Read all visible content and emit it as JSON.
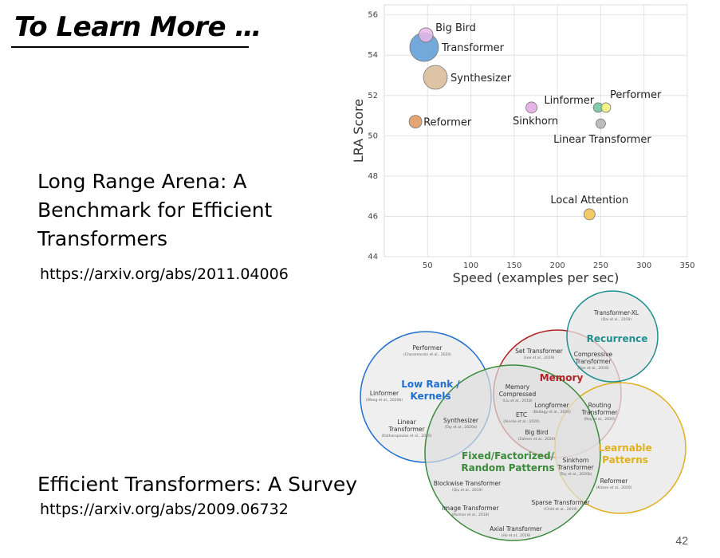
{
  "slide": {
    "title": "To Learn More …",
    "page_number": "42"
  },
  "references": [
    {
      "title_lines": [
        "Long Range Arena: A",
        "Benchmark for Efficient",
        "Transformers"
      ],
      "url": "https://arxiv.org/abs/2011.04006"
    },
    {
      "title_lines": [
        "Efficient Transformers: A Survey"
      ],
      "url": "https://arxiv.org/abs/2009.06732"
    }
  ],
  "chart_data": {
    "type": "scatter",
    "xlabel": "Speed (examples per sec)",
    "ylabel": "LRA Score",
    "xlim": [
      0,
      350
    ],
    "ylim": [
      44,
      56.5
    ],
    "xticks": [
      50,
      100,
      150,
      200,
      250,
      300,
      350
    ],
    "yticks": [
      44,
      46,
      48,
      50,
      52,
      54,
      56
    ],
    "grid": true,
    "points": [
      {
        "label": "Big Bird",
        "x": 48,
        "y": 55.0,
        "size": 9,
        "color": "#e9b8e8"
      },
      {
        "label": "Transformer",
        "x": 46,
        "y": 54.4,
        "size": 18,
        "color": "#5b9bd5"
      },
      {
        "label": "Synthesizer",
        "x": 59,
        "y": 52.9,
        "size": 15,
        "color": "#d9b895"
      },
      {
        "label": "Reformer",
        "x": 36,
        "y": 50.7,
        "size": 8,
        "color": "#e0955a"
      },
      {
        "label": "Linformer",
        "x": 247,
        "y": 51.4,
        "size": 6,
        "color": "#6cc49a"
      },
      {
        "label": "Performer",
        "x": 256,
        "y": 51.4,
        "size": 6,
        "color": "#f0f07a"
      },
      {
        "label": "Sinkhorn",
        "x": 170,
        "y": 51.4,
        "size": 7,
        "color": "#e1a6e1"
      },
      {
        "label": "Linear Transformer",
        "x": 250,
        "y": 50.6,
        "size": 6,
        "color": "#b0b0b0"
      },
      {
        "label": "Local Attention",
        "x": 237,
        "y": 46.1,
        "size": 7,
        "color": "#f2c14e"
      }
    ]
  },
  "venn": {
    "groups": [
      {
        "name": "Low Rank / Kernels",
        "color": "#1f6fd1"
      },
      {
        "name": "Memory",
        "color": "#b22222"
      },
      {
        "name": "Recurrence",
        "color": "#1f8f8f"
      },
      {
        "name": "Fixed/Factorized/ Random Patterns",
        "color": "#3b8a3b"
      },
      {
        "name": "Learnable Patterns",
        "color": "#e0b020"
      }
    ],
    "items": [
      {
        "name": "Transformer-XL",
        "cite": "(Dai et al., 2019)"
      },
      {
        "name": "Performer",
        "cite": "(Choromanski et al., 2020)"
      },
      {
        "name": "Set Transformer",
        "cite": "(Lee et al., 2019)"
      },
      {
        "name": "Compressive Transformer",
        "cite": "(Rae et al., 2018)"
      },
      {
        "name": "Linformer",
        "cite": "(Wang et al., 2020b)"
      },
      {
        "name": "Memory Compressed",
        "cite": "(Liu et al., 2018)"
      },
      {
        "name": "Longformer",
        "cite": "(Beltagy et al., 2020)"
      },
      {
        "name": "Routing Transformer",
        "cite": "(Roy et al., 2020)"
      },
      {
        "name": "Linear Transformer",
        "cite": "(Katharopoulos et al., 2020)"
      },
      {
        "name": "Synthesizer",
        "cite": "(Tay et al., 2020a)"
      },
      {
        "name": "ETC",
        "cite": "(Ainslie et al., 2020)"
      },
      {
        "name": "Big Bird",
        "cite": "(Zaheer et al., 2020)"
      },
      {
        "name": "Sinkhorn Transformer",
        "cite": "(Tay et al., 2020b)"
      },
      {
        "name": "Blockwise Transformer",
        "cite": "(Qiu et al., 2019)"
      },
      {
        "name": "Reformer",
        "cite": "(Kitaev et al., 2020)"
      },
      {
        "name": "Sparse Transformer",
        "cite": "(Child et al., 2019)"
      },
      {
        "name": "Image Transformer",
        "cite": "(Parmar et al., 2018)"
      },
      {
        "name": "Axial Transformer",
        "cite": "(Ho et al., 2019)"
      }
    ]
  }
}
